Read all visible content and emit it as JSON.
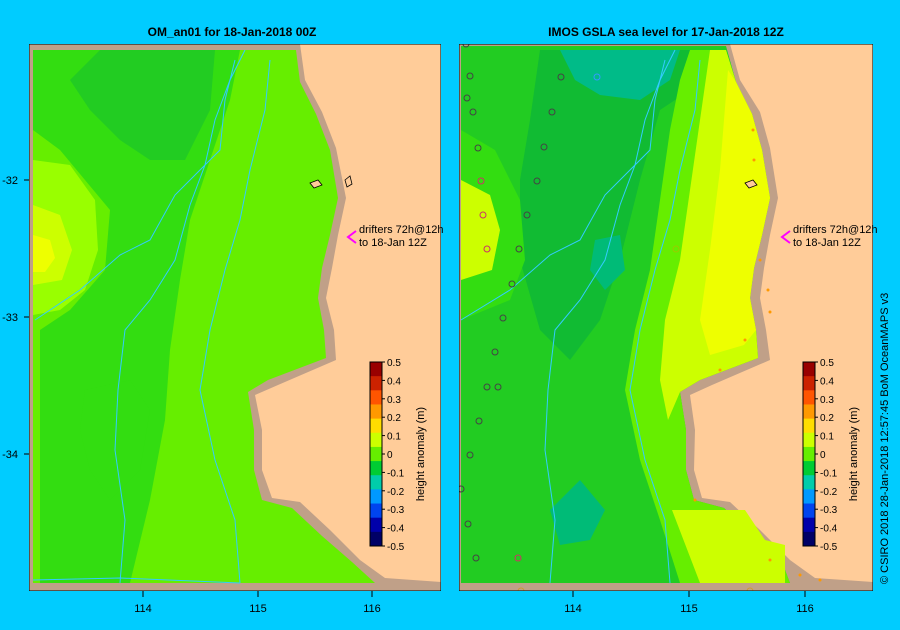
{
  "colors": {
    "background": "#00ccff",
    "land": "#ffcc99",
    "shelf": "#c0a088",
    "contour": "#33ccff",
    "drifter_arrow": "#ff00ff"
  },
  "panels": [
    {
      "title": "OM_an01  for 18-Jan-2018 00Z",
      "annotation_line1": "drifters 72h@12h",
      "annotation_line2": "to 18-Jan 12Z"
    },
    {
      "title": "IMOS GSLA sea level  for 17-Jan-2018 12Z",
      "annotation_line1": "drifters 72h@12h",
      "annotation_line2": "to 18-Jan 12Z"
    }
  ],
  "axes": {
    "lat_ticks": [
      "-32",
      "-33",
      "-34"
    ],
    "lon_ticks": [
      "114",
      "115",
      "116"
    ]
  },
  "colorbar": {
    "label": "height anomaly (m)",
    "ticks": [
      "0.5",
      "0.4",
      "0.3",
      "0.2",
      "0.1",
      "0",
      "-0.1",
      "-0.2",
      "-0.3",
      "-0.4",
      "-0.5"
    ],
    "colors": [
      "#990000",
      "#cc2200",
      "#ff5500",
      "#ff9900",
      "#ffdd00",
      "#ccff00",
      "#66ee00",
      "#00cc33",
      "#00ccaa",
      "#0099ff",
      "#0044ee",
      "#0000aa",
      "#000066"
    ]
  },
  "credit": "© CSIRO 2018   28-Jan-2018 12:57:45 BoM OceanMAPS v3"
}
